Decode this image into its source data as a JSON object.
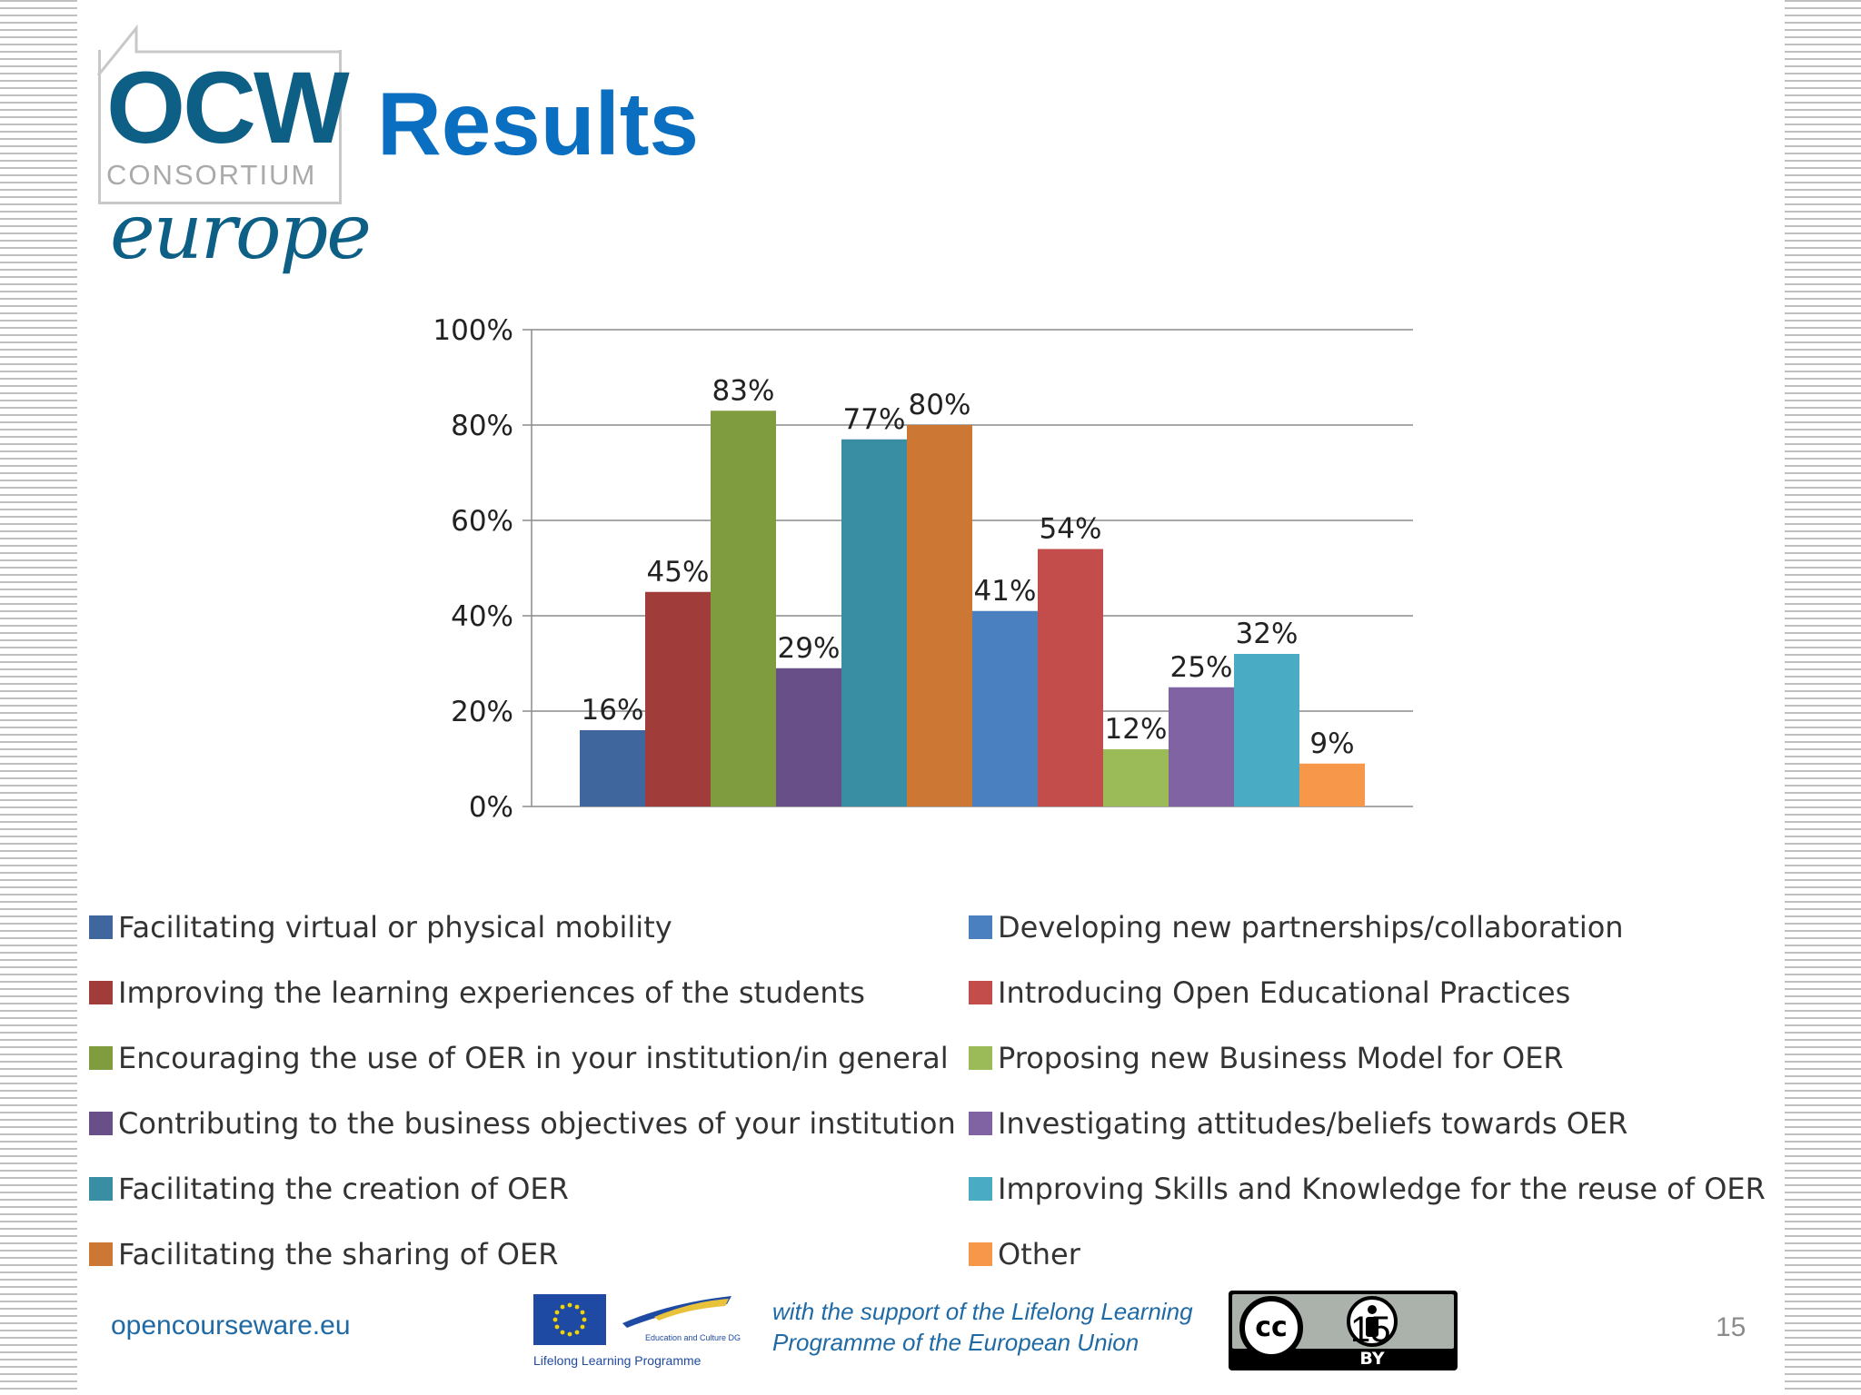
{
  "slide": {
    "title": "Results",
    "logo": {
      "main": "OCW",
      "sub": "CONSORTIUM",
      "region": "europe",
      "brand_color": "#0d5f86"
    },
    "footer": {
      "url": "opencourseware.eu",
      "eu_caption": "Lifelong Learning Programme",
      "eu_dg": "Education and Culture DG",
      "support_line1": "with the support of the Lifelong Learning",
      "support_line2": "Programme of the European Union",
      "cc_label": "cc",
      "by_label": "BY",
      "overlay_number": "15",
      "page_number": "15"
    }
  },
  "chart_data": {
    "type": "bar",
    "ylim": [
      0,
      100
    ],
    "y_ticks": [
      "0%",
      "20%",
      "40%",
      "60%",
      "80%",
      "100%"
    ],
    "grid": true,
    "legend_placement": "bottom",
    "series": [
      {
        "name": "Facilitating virtual or physical mobility",
        "value": 16,
        "label": "16%",
        "color": "#3f679e"
      },
      {
        "name": "Improving the learning experiences of the students",
        "value": 45,
        "label": "45%",
        "color": "#a03c3a"
      },
      {
        "name": "Encouraging the use of OER in your institution/in general",
        "value": 83,
        "label": "83%",
        "color": "#7f9c3f"
      },
      {
        "name": "Contributing to the business objectives of your institution",
        "value": 29,
        "label": "29%",
        "color": "#694f88"
      },
      {
        "name": "Facilitating the creation of OER",
        "value": 77,
        "label": "77%",
        "color": "#398ea3"
      },
      {
        "name": "Facilitating the sharing of OER",
        "value": 80,
        "label": "80%",
        "color": "#cc7733"
      },
      {
        "name": "Developing new partnerships/collaboration",
        "value": 41,
        "label": "41%",
        "color": "#4a7fc0"
      },
      {
        "name": "Introducing Open Educational  Practices",
        "value": 54,
        "label": "54%",
        "color": "#c24d4a"
      },
      {
        "name": "Proposing new Business Model for OER",
        "value": 12,
        "label": "12%",
        "color": "#9bbb58"
      },
      {
        "name": "Investigating attitudes/beliefs  towards OER",
        "value": 25,
        "label": "25%",
        "color": "#8063a2"
      },
      {
        "name": "Improving Skills and Knowledge for the reuse of OER",
        "value": 32,
        "label": "32%",
        "color": "#4aabc5"
      },
      {
        "name": "Other",
        "value": 9,
        "label": "9%",
        "color": "#f6974a"
      }
    ]
  }
}
